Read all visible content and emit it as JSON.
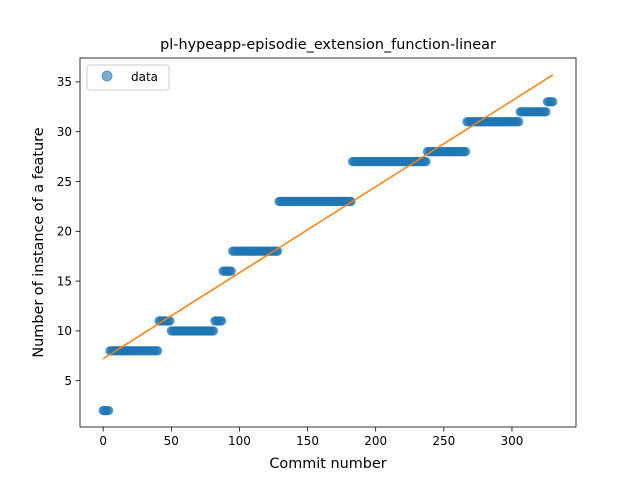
{
  "chart_data": {
    "type": "scatter",
    "title": "pl-hypeapp-episodie_extension_function-linear",
    "xlabel": "Commit number",
    "ylabel": "Number of instance of a feature",
    "xlim": [
      -17,
      347
    ],
    "ylim": [
      0.35,
      37.4
    ],
    "xticks": [
      0,
      50,
      100,
      150,
      200,
      250,
      300
    ],
    "yticks": [
      5,
      10,
      15,
      20,
      25,
      30,
      35
    ],
    "legend": {
      "position": "upper-left",
      "label": "data"
    },
    "series": [
      {
        "name": "data",
        "kind": "points",
        "color": "#1f77b4",
        "segments": [
          {
            "x_start": 0,
            "x_end": 4,
            "y": 2
          },
          {
            "x_start": 5,
            "x_end": 40,
            "y": 8
          },
          {
            "x_start": 41,
            "x_end": 49,
            "y": 11
          },
          {
            "x_start": 50,
            "x_end": 81,
            "y": 10
          },
          {
            "x_start": 82,
            "x_end": 87,
            "y": 11
          },
          {
            "x_start": 88,
            "x_end": 94,
            "y": 16
          },
          {
            "x_start": 95,
            "x_end": 128,
            "y": 18
          },
          {
            "x_start": 129,
            "x_end": 182,
            "y": 23
          },
          {
            "x_start": 183,
            "x_end": 237,
            "y": 27
          },
          {
            "x_start": 238,
            "x_end": 266,
            "y": 28
          },
          {
            "x_start": 267,
            "x_end": 305,
            "y": 31
          },
          {
            "x_start": 306,
            "x_end": 325,
            "y": 32
          },
          {
            "x_start": 326,
            "x_end": 330,
            "y": 33
          }
        ]
      },
      {
        "name": "",
        "kind": "line",
        "color": "#ff7f0e",
        "x": [
          0,
          330
        ],
        "y": [
          7.2,
          35.7
        ]
      }
    ]
  }
}
